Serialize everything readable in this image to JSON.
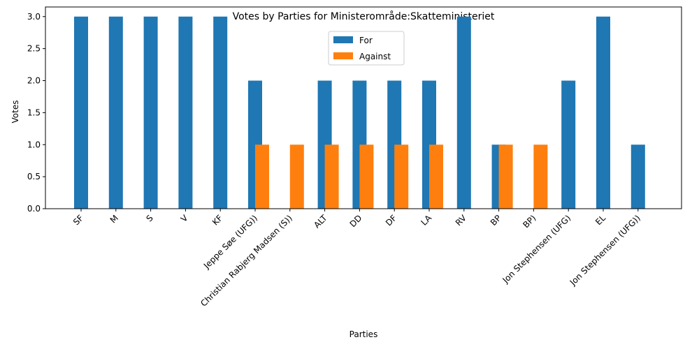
{
  "chart_data": {
    "type": "bar",
    "title": "Votes by Parties for Ministerområde:Skatteministeriet",
    "xlabel": "Parties",
    "ylabel": "Votes",
    "ylim": [
      0,
      3.15
    ],
    "yticks": [
      "0.0",
      "0.5",
      "1.0",
      "1.5",
      "2.0",
      "2.5",
      "3.0"
    ],
    "legend_position": "top-center",
    "categories": [
      "SF",
      "M",
      "S",
      "V",
      "KF",
      "Jeppe Søe (UFG))",
      "Christian Rabjerg Madsen (S))",
      "ALT",
      "DD",
      "DF",
      "LA",
      "RV",
      "BP",
      "BP)",
      "Jon Stephensen (UFG)",
      "EL",
      "Jon Stephensen (UFG))"
    ],
    "series": [
      {
        "name": "For",
        "color": "#1f77b4",
        "values": [
          3,
          3,
          3,
          3,
          3,
          2,
          0,
          2,
          2,
          2,
          2,
          3,
          1,
          0,
          2,
          3,
          1
        ]
      },
      {
        "name": "Against",
        "color": "#ff7f0e",
        "values": [
          0,
          0,
          0,
          0,
          0,
          1,
          1,
          1,
          1,
          1,
          1,
          0,
          1,
          1,
          0,
          0,
          0
        ]
      }
    ]
  }
}
